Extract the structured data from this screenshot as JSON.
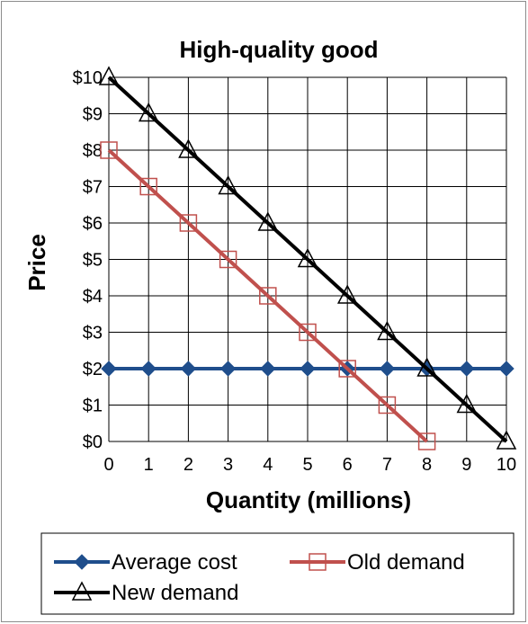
{
  "chart_data": {
    "type": "line",
    "title": "High-quality good",
    "xlabel": "Quantity (millions)",
    "ylabel": "Price",
    "x": [
      0,
      1,
      2,
      3,
      4,
      5,
      6,
      7,
      8,
      9,
      10
    ],
    "xlim": [
      0,
      10
    ],
    "ylim": [
      0,
      10
    ],
    "x_tick_labels": [
      "0",
      "1",
      "2",
      "3",
      "4",
      "5",
      "6",
      "7",
      "8",
      "9",
      "10"
    ],
    "y_tick_labels": [
      "$0",
      "$1",
      "$2",
      "$3",
      "$4",
      "$5",
      "$6",
      "$7",
      "$8",
      "$9",
      "$10"
    ],
    "grid": true,
    "legend_position": "bottom",
    "series": [
      {
        "name": "Average cost",
        "color": "#1f4e8c",
        "marker": "diamond",
        "x": [
          0,
          1,
          2,
          3,
          4,
          5,
          6,
          7,
          8,
          9,
          10
        ],
        "y": [
          2,
          2,
          2,
          2,
          2,
          2,
          2,
          2,
          2,
          2,
          2
        ]
      },
      {
        "name": "Old demand",
        "color": "#c0504d",
        "marker": "square-open",
        "x": [
          0,
          1,
          2,
          3,
          4,
          5,
          6,
          7,
          8
        ],
        "y": [
          8,
          7,
          6,
          5,
          4,
          3,
          2,
          1,
          0
        ]
      },
      {
        "name": "New demand",
        "color": "#000000",
        "marker": "triangle-open",
        "x": [
          0,
          1,
          2,
          3,
          4,
          5,
          6,
          7,
          8,
          9,
          10
        ],
        "y": [
          10,
          9,
          8,
          7,
          6,
          5,
          4,
          3,
          2,
          1,
          0
        ]
      }
    ]
  }
}
